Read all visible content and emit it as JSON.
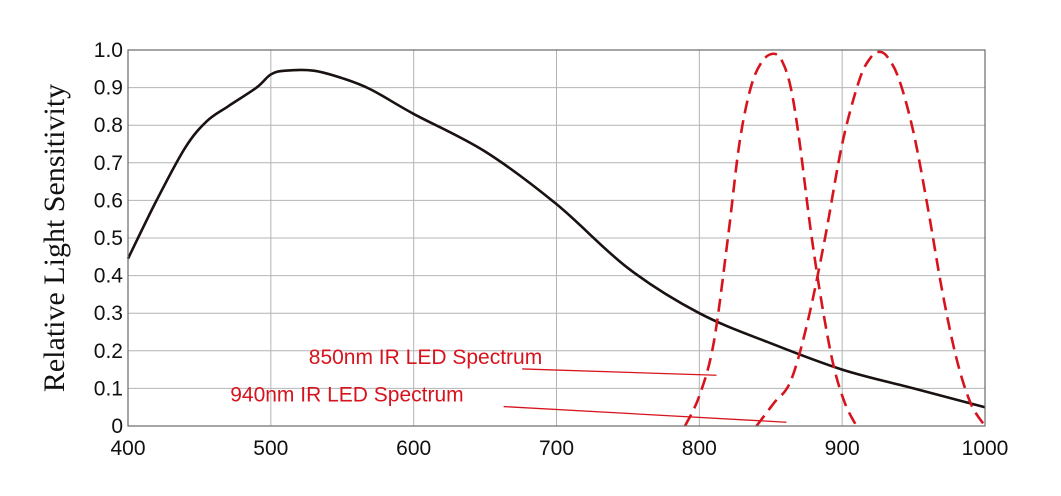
{
  "chart_data": {
    "type": "line",
    "title": "",
    "xlabel": "",
    "ylabel": "Relative Light Sensitivity",
    "xlim": [
      400,
      1000
    ],
    "ylim": [
      0,
      1.0
    ],
    "grid": true,
    "x_ticks": [
      400,
      500,
      600,
      700,
      800,
      900,
      1000
    ],
    "y_ticks": [
      0,
      0.1,
      0.2,
      0.3,
      0.4,
      0.5,
      0.6,
      0.7,
      0.8,
      0.9,
      1.0
    ],
    "x_tick_labels": [
      "400",
      "500",
      "600",
      "700",
      "800",
      "900",
      "1000"
    ],
    "y_tick_labels": [
      "0",
      "0.1",
      "0.2",
      "0.3",
      "0.4",
      "0.5",
      "0.6",
      "0.7",
      "0.8",
      "0.9",
      "1.0"
    ],
    "colors": {
      "sensitivity": "#1a1111",
      "ir": "#d7141e",
      "grid": "#b4b4b4"
    },
    "series": [
      {
        "style": "solid",
        "x": [
          400,
          420,
          440,
          455,
          470,
          490,
          500,
          510,
          530,
          550,
          570,
          600,
          650,
          700,
          750,
          800,
          850,
          900,
          950,
          1000
        ],
        "y": [
          0.445,
          0.6,
          0.74,
          0.81,
          0.85,
          0.9,
          0.935,
          0.945,
          0.945,
          0.925,
          0.895,
          0.83,
          0.73,
          0.59,
          0.42,
          0.3,
          0.22,
          0.15,
          0.1,
          0.05
        ]
      },
      {
        "style": "dashed",
        "x": [
          790,
          800,
          810,
          820,
          828,
          836,
          844,
          852,
          858,
          864,
          870,
          878,
          886,
          894,
          902,
          910
        ],
        "y": [
          0.0,
          0.08,
          0.22,
          0.5,
          0.75,
          0.9,
          0.97,
          0.99,
          0.97,
          0.9,
          0.76,
          0.52,
          0.32,
          0.16,
          0.06,
          0.0
        ]
      },
      {
        "style": "dashed",
        "x": [
          840,
          852,
          864,
          876,
          888,
          900,
          912,
          920,
          926,
          932,
          940,
          950,
          960,
          970,
          980,
          990,
          1000
        ],
        "y": [
          0.0,
          0.06,
          0.12,
          0.28,
          0.5,
          0.75,
          0.92,
          0.98,
          0.995,
          0.98,
          0.92,
          0.78,
          0.58,
          0.36,
          0.18,
          0.06,
          0.0
        ]
      }
    ],
    "annotations": [
      {
        "text": "850nm IR LED Spectrum",
        "x": 690,
        "y": 0.165,
        "anchor": "end",
        "leader_to": [
          812,
          0.135
        ]
      },
      {
        "text": "940nm IR LED Spectrum",
        "x": 635,
        "y": 0.065,
        "anchor": "end",
        "leader_to": [
          861,
          0.01
        ]
      }
    ]
  }
}
